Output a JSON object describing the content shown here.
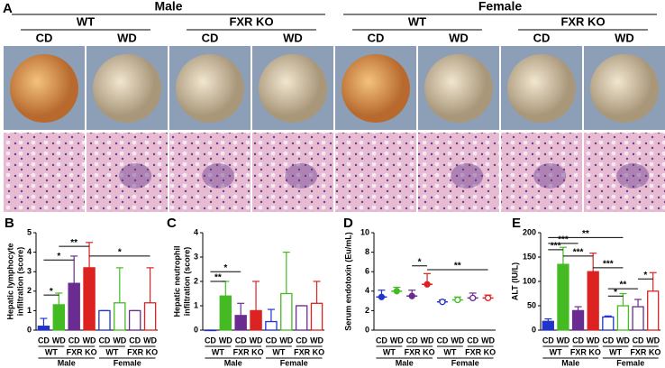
{
  "photo_panel": {
    "label": "A",
    "sexes": [
      {
        "name": "Male",
        "genotypes": [
          "WT",
          "FXR KO"
        ]
      },
      {
        "name": "Female",
        "genotypes": [
          "WT",
          "FXR KO"
        ]
      }
    ],
    "diets": [
      "CD",
      "WD",
      "CD",
      "WD",
      "CD",
      "WD",
      "CD",
      "WD"
    ]
  },
  "chart_data": [
    {
      "type": "bar",
      "label": "B",
      "ylabel": [
        "Hepatic lymphocyte",
        "infiltration (score)"
      ],
      "ylim": [
        0,
        5
      ],
      "yticks": [
        0,
        1,
        2,
        3,
        4,
        5
      ],
      "categories": [
        "CD",
        "WD",
        "CD",
        "WD",
        "CD",
        "WD",
        "CD",
        "WD"
      ],
      "genotypes": [
        "WT",
        "FXR KO",
        "WT",
        "FXR KO"
      ],
      "sexes": [
        "Male",
        "Female"
      ],
      "colors": [
        "#2233cc",
        "#44bb22",
        "#6a2c91",
        "#dd2222",
        "#2233cc",
        "#44bb22",
        "#6a2c91",
        "#dd2222"
      ],
      "filled": [
        true,
        true,
        true,
        true,
        false,
        false,
        false,
        false
      ],
      "values": [
        0.2,
        1.3,
        2.4,
        3.2,
        1.0,
        1.4,
        1.0,
        1.4
      ],
      "errors": [
        0.4,
        0.6,
        1.4,
        1.3,
        0,
        1.8,
        0,
        1.8
      ],
      "significance": [
        {
          "from": 0,
          "to": 1,
          "at": 1.8,
          "label": "*"
        },
        {
          "from": 0,
          "to": 2,
          "at": 3.6,
          "label": "*"
        },
        {
          "from": 1,
          "to": 3,
          "at": 4.3,
          "label": "**"
        },
        {
          "from": 3,
          "to": 7,
          "at": 3.8,
          "label": "*"
        }
      ]
    },
    {
      "type": "bar",
      "label": "C",
      "ylabel": [
        "Hepatic neutrophil",
        "infiltration (score)"
      ],
      "ylim": [
        0,
        4
      ],
      "yticks": [
        0,
        1,
        2,
        3,
        4
      ],
      "categories": [
        "CD",
        "WD",
        "CD",
        "WD",
        "CD",
        "WD",
        "CD",
        "WD"
      ],
      "genotypes": [
        "WT",
        "FXR KO",
        "WT",
        "FXR KO"
      ],
      "sexes": [
        "Male",
        "Female"
      ],
      "colors": [
        "#2233cc",
        "#44bb22",
        "#6a2c91",
        "#dd2222",
        "#2233cc",
        "#44bb22",
        "#6a2c91",
        "#dd2222"
      ],
      "filled": [
        true,
        true,
        true,
        true,
        false,
        false,
        false,
        false
      ],
      "values": [
        0,
        1.4,
        0.6,
        0.8,
        0.35,
        1.5,
        1.0,
        1.1
      ],
      "errors": [
        0,
        0.6,
        0.5,
        1.2,
        0.5,
        1.7,
        0,
        0.9
      ],
      "significance": [
        {
          "from": 0,
          "to": 1,
          "at": 2.0,
          "label": "**"
        },
        {
          "from": 0,
          "to": 2,
          "at": 2.4,
          "label": "*"
        }
      ]
    },
    {
      "type": "dot",
      "label": "D",
      "ylabel": [
        "Serum endotoxin (Eu/mL)"
      ],
      "ylim": [
        0,
        10
      ],
      "yticks": [
        0,
        2,
        4,
        6,
        8,
        10
      ],
      "categories": [
        "CD",
        "WD",
        "CD",
        "WD",
        "CD",
        "WD",
        "CD",
        "WD"
      ],
      "genotypes": [
        "WT",
        "FXR KO",
        "WT",
        "FXR KO"
      ],
      "sexes": [
        "Male",
        "Female"
      ],
      "colors": [
        "#2233cc",
        "#44bb22",
        "#6a2c91",
        "#dd2222",
        "#2233cc",
        "#44bb22",
        "#6a2c91",
        "#dd2222"
      ],
      "filled": [
        true,
        true,
        true,
        true,
        false,
        false,
        false,
        false
      ],
      "values": [
        3.4,
        4.0,
        3.5,
        4.7,
        2.9,
        3.1,
        3.3,
        3.3
      ],
      "errors": [
        0.7,
        0.4,
        0.6,
        1.1,
        0.2,
        0.3,
        0.5,
        0.3
      ],
      "significance": [
        {
          "from": 2,
          "to": 3,
          "at": 6.6,
          "label": "*"
        },
        {
          "from": 3,
          "to": 7,
          "at": 6.2,
          "label": "**"
        }
      ]
    },
    {
      "type": "bar",
      "label": "E",
      "ylabel": [
        "ALT (IU/L)"
      ],
      "ylim": [
        0,
        200
      ],
      "yticks": [
        0,
        50,
        100,
        150,
        200
      ],
      "categories": [
        "CD",
        "WD",
        "CD",
        "WD",
        "CD",
        "WD",
        "CD",
        "WD"
      ],
      "genotypes": [
        "WT",
        "FXR KO",
        "WT",
        "FXR KO"
      ],
      "sexes": [
        "Male",
        "Female"
      ],
      "colors": [
        "#2233cc",
        "#44bb22",
        "#6a2c91",
        "#dd2222",
        "#2233cc",
        "#44bb22",
        "#6a2c91",
        "#dd2222"
      ],
      "filled": [
        true,
        true,
        true,
        true,
        false,
        false,
        false,
        false
      ],
      "values": [
        18,
        135,
        40,
        120,
        27,
        50,
        48,
        80
      ],
      "errors": [
        5,
        35,
        8,
        38,
        2,
        25,
        15,
        38
      ],
      "significance": [
        {
          "from": 0,
          "to": 1,
          "at": 165,
          "label": "***"
        },
        {
          "from": 0,
          "to": 2,
          "at": 178,
          "label": "***"
        },
        {
          "from": 0,
          "to": 5,
          "at": 190,
          "label": "**"
        },
        {
          "from": 1,
          "to": 3,
          "at": 152,
          "label": "***"
        },
        {
          "from": 3,
          "to": 5,
          "at": 128,
          "label": "***"
        },
        {
          "from": 4,
          "to": 5,
          "at": 70,
          "label": "*"
        },
        {
          "from": 4,
          "to": 6,
          "at": 85,
          "label": "**"
        },
        {
          "from": 6,
          "to": 7,
          "at": 105,
          "label": "*"
        }
      ]
    }
  ]
}
